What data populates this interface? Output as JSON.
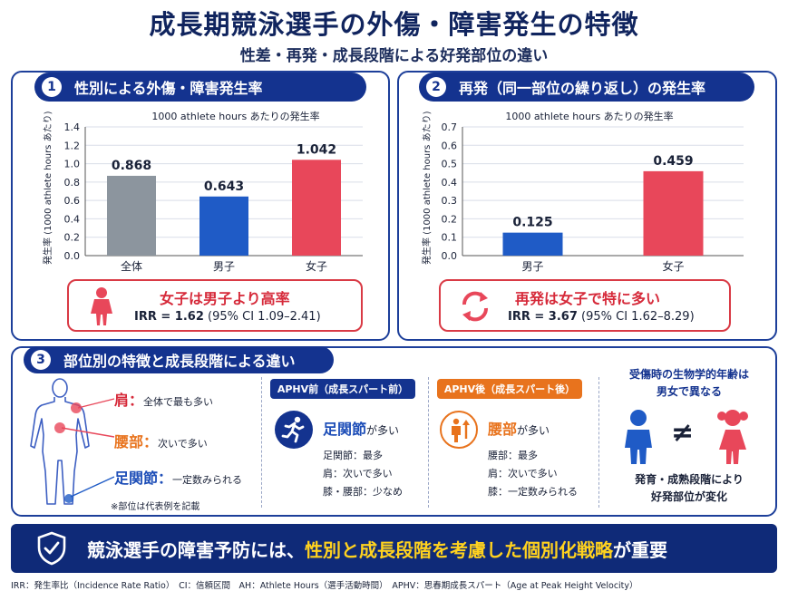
{
  "title": "成長期競泳選手の外傷・障害発生の特徴",
  "subtitle": "性差・再発・成長段階による好発部位の違い",
  "panel1": {
    "number": "1",
    "heading": "性別による外傷・障害発生率",
    "chart_title": "1000 athlete hours あたりの発生率",
    "ylabel": "発生率 (1000 athlete hours あたり)",
    "callout_main": "女子は男子より高率",
    "callout_irr_label": "IRR = 1.62",
    "callout_ci": "(95% CI 1.09–2.41)",
    "icon": "female-person-icon"
  },
  "panel2": {
    "number": "2",
    "heading": "再発（同一部位の繰り返し）の発生率",
    "chart_title": "1000 athlete hours あたりの発生率",
    "ylabel": "発生率 (1000 athlete hours あたり)",
    "callout_main": "再発は女子で特に多い",
    "callout_irr_label": "IRR = 3.67",
    "callout_ci": "(95% CI 1.62–8.29)",
    "icon": "repeat-arrows-icon"
  },
  "chart_data": [
    {
      "type": "bar",
      "title": "1000 athlete hours あたりの発生率",
      "ylabel": "発生率 (1000 athlete hours あたり)",
      "categories": [
        "全体",
        "男子",
        "女子"
      ],
      "values": [
        0.868,
        0.643,
        1.042
      ],
      "value_labels": [
        "0.868",
        "0.643",
        "1.042"
      ],
      "colors": [
        "#8c959e",
        "#1f5bc6",
        "#e8475a"
      ],
      "ylim": [
        0,
        1.4
      ],
      "yticks": [
        "0.0",
        "0.2",
        "0.4",
        "0.6",
        "0.8",
        "1.0",
        "1.2",
        "1.4"
      ],
      "grid": true
    },
    {
      "type": "bar",
      "title": "1000 athlete hours あたりの発生率",
      "ylabel": "発生率 (1000 athlete hours あたり)",
      "categories": [
        "男子",
        "女子"
      ],
      "values": [
        0.125,
        0.459
      ],
      "value_labels": [
        "0.125",
        "0.459"
      ],
      "colors": [
        "#1f5bc6",
        "#e8475a"
      ],
      "ylim": [
        0,
        0.7
      ],
      "yticks": [
        "0.0",
        "0.1",
        "0.2",
        "0.3",
        "0.4",
        "0.5",
        "0.6",
        "0.7"
      ],
      "grid": true
    }
  ],
  "panel3": {
    "number": "3",
    "heading": "部位別の特徴と成長段階による違い",
    "site1_name": "肩",
    "site1_desc": "全体で最も多い",
    "site2_name": "腰部",
    "site2_desc": "次いで多い",
    "site3_name": "足関節",
    "site3_desc": "一定数みられる",
    "note": "※部位は代表例を記載",
    "pre_title": "APHV前（成長スパート前）",
    "pre_main_hl": "足関節",
    "pre_main_rest": "が多い",
    "pre_items": [
      "足関節：最多",
      "肩：次いで多い",
      "膝・腰部：少なめ"
    ],
    "post_title": "APHV後（成長スパート後）",
    "post_main_hl": "腰部",
    "post_main_rest": "が多い",
    "post_items": [
      "腰部：最多",
      "肩：次いで多い",
      "膝：一定数みられる"
    ],
    "age_title_line1": "受傷時の生物学的年齢は",
    "age_title_line2": "男女で異なる",
    "neq": "≠",
    "age_desc_line1": "発育・成熟段階により",
    "age_desc_line2": "好発部位が変化"
  },
  "banner": {
    "part1": "競泳選手の障害予防には、",
    "part2": "性別と成長段階を考慮した個別化戦略",
    "part3": "が重要"
  },
  "footer": "IRR：発生率比（Incidence Rate Ratio）　CI：信頼区間　AH：Athlete Hours（選手活動時間）　APHV：思春期成長スパート（Age at Peak Height Velocity）",
  "colors": {
    "navy": "#14338f",
    "red": "#e8475a",
    "blue": "#1f5bc6",
    "gray": "#8c959e",
    "orange": "#e8731d",
    "yellow": "#ffd21f"
  }
}
